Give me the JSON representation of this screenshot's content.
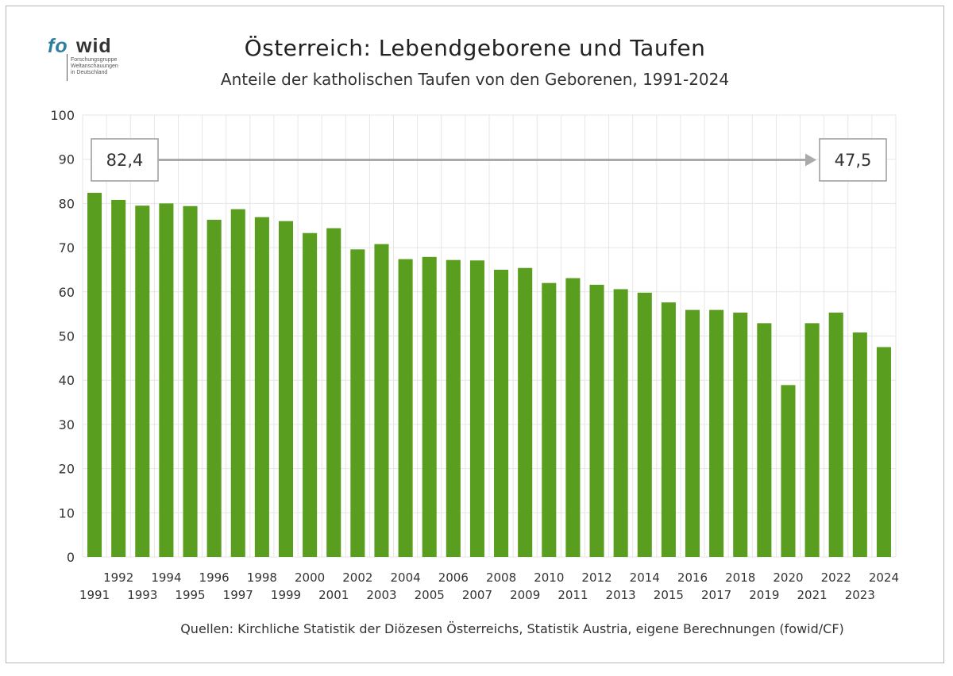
{
  "logo": {
    "part1": "fo",
    "part2": "wid",
    "subtitle": "Forschungsgruppe\nWeltanschauungen\nin Deutschland"
  },
  "source": "Quellen: Kirchliche Statistik der Diözesen Österreichs, Statistik Austria, eigene Berechnungen (fowid/CF)",
  "colors": {
    "bar": "#5a9e1f",
    "grid": "#e6e6e6",
    "arrow": "#aaaaaa",
    "box_border": "#9a9a9a"
  },
  "chart_data": {
    "type": "bar",
    "title": "Österreich: Lebendgeborene und Taufen",
    "subtitle": "Anteile der katholischen Taufen von den Geborenen, 1991-2024",
    "xlabel": "",
    "ylabel": "",
    "ylim": [
      0,
      100
    ],
    "yticks": [
      0,
      10,
      20,
      30,
      40,
      50,
      60,
      70,
      80,
      90,
      100
    ],
    "grid": true,
    "categories": [
      "1991",
      "1992",
      "1993",
      "1994",
      "1995",
      "1996",
      "1997",
      "1998",
      "1999",
      "2000",
      "2001",
      "2002",
      "2003",
      "2004",
      "2005",
      "2006",
      "2007",
      "2008",
      "2009",
      "2010",
      "2011",
      "2012",
      "2013",
      "2014",
      "2015",
      "2016",
      "2017",
      "2018",
      "2019",
      "2020",
      "2021",
      "2022",
      "2023",
      "2024"
    ],
    "values": [
      82.4,
      80.8,
      79.5,
      80.0,
      79.4,
      76.3,
      78.7,
      76.9,
      76.0,
      73.3,
      74.4,
      69.6,
      70.8,
      67.4,
      67.9,
      67.2,
      67.1,
      65.0,
      65.4,
      62.0,
      63.1,
      61.6,
      60.6,
      59.8,
      57.6,
      55.9,
      55.9,
      55.3,
      52.9,
      38.9,
      52.9,
      55.3,
      50.8,
      47.5
    ],
    "annotations": [
      {
        "label": "82,4"
      },
      {
        "label": "47,5"
      }
    ]
  }
}
